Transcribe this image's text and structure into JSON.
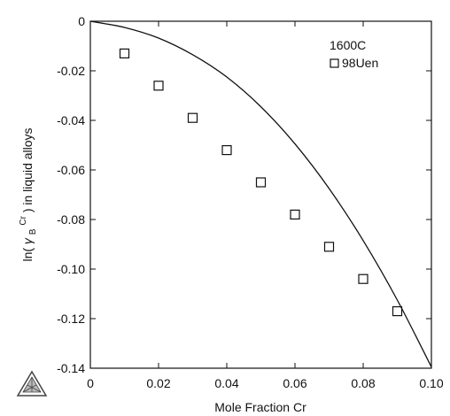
{
  "chart_data": {
    "type": "scatter",
    "xlabel": "Mole Fraction Cr",
    "ylabel_parts": {
      "prefix": "ln(",
      "gamma": "γ",
      "subscript": "B",
      "superscript": "Cr",
      "suffix": ") in liquid alloys"
    },
    "xlim": [
      0,
      0.1
    ],
    "ylim": [
      -0.14,
      0
    ],
    "x_ticks": [
      0,
      0.02,
      0.04,
      0.06,
      0.08,
      0.1
    ],
    "x_tick_labels": [
      "0",
      "0.02",
      "0.04",
      "0.06",
      "0.08",
      "0.10"
    ],
    "y_ticks": [
      0,
      -0.02,
      -0.04,
      -0.06,
      -0.08,
      -0.1,
      -0.12,
      -0.14
    ],
    "y_tick_labels": [
      "0",
      "-0.02",
      "-0.04",
      "-0.06",
      "-0.08",
      "-0.10",
      "-0.12",
      "-0.14"
    ],
    "legend": {
      "title": "1600C",
      "entries": [
        {
          "label": "98Uen",
          "marker": "square"
        }
      ],
      "placement": "top-right"
    },
    "series": [
      {
        "name": "98Uen",
        "kind": "points",
        "marker": "square",
        "x": [
          0.01,
          0.02,
          0.03,
          0.04,
          0.05,
          0.06,
          0.07,
          0.08,
          0.09
        ],
        "y": [
          -0.013,
          -0.026,
          -0.039,
          -0.052,
          -0.065,
          -0.078,
          -0.091,
          -0.104,
          -0.117
        ]
      },
      {
        "kind": "line",
        "x": [
          0,
          0.01,
          0.02,
          0.03,
          0.04,
          0.05,
          0.06,
          0.07,
          0.08,
          0.09,
          0.1
        ],
        "y": [
          0,
          -0.0025,
          -0.0068,
          -0.0135,
          -0.0225,
          -0.0345,
          -0.0495,
          -0.0675,
          -0.0885,
          -0.1125,
          -0.1395
        ]
      }
    ],
    "grid": false,
    "colors": {
      "line": "#111111",
      "marker": "#111111"
    }
  }
}
